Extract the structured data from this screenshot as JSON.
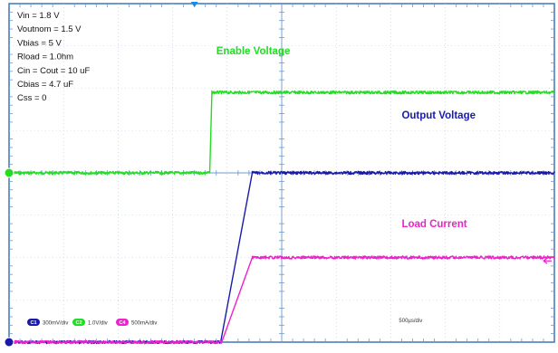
{
  "chart_data": {
    "type": "line",
    "xlim": [
      0,
      5000
    ],
    "ylim": [
      -4,
      4
    ],
    "grid": true,
    "params": [
      "Vin = 1.8 V",
      "Voutnom = 1.5 V",
      "Vbias = 5 V",
      "Rload = 1.0hm",
      "Cin = Cout = 10 uF",
      "Cbias = 4.7 uF",
      "Css = 0"
    ],
    "series": [
      {
        "name": "Enable Voltage",
        "color": "#22dd22",
        "x": [
          0,
          1840,
          1860,
          5000
        ],
        "y": [
          0,
          0,
          1.9,
          1.9
        ],
        "marker_level": 0
      },
      {
        "name": "Output Voltage",
        "color": "#1a1aaa",
        "x": [
          0,
          1940,
          2230,
          5000
        ],
        "y": [
          -4,
          -4,
          0,
          0
        ],
        "marker_level": -4
      },
      {
        "name": "Load Current",
        "color": "#ee22cc",
        "x": [
          0,
          1950,
          2230,
          5000
        ],
        "y": [
          -4,
          -4,
          -2,
          -2
        ]
      }
    ],
    "status_bar": {
      "channels": [
        {
          "id": "C1",
          "scale": "300mV/div",
          "color": "#1a1aaa"
        },
        {
          "id": "C2",
          "scale": "1.0V/div",
          "color": "#22dd22"
        },
        {
          "id": "C4",
          "scale": "500mA/div",
          "color": "#ee22cc"
        }
      ],
      "timebase": "500µs/div"
    },
    "trigger_marker_color": "#1e88e5",
    "offscreen_marker_color": "#ee22cc"
  }
}
